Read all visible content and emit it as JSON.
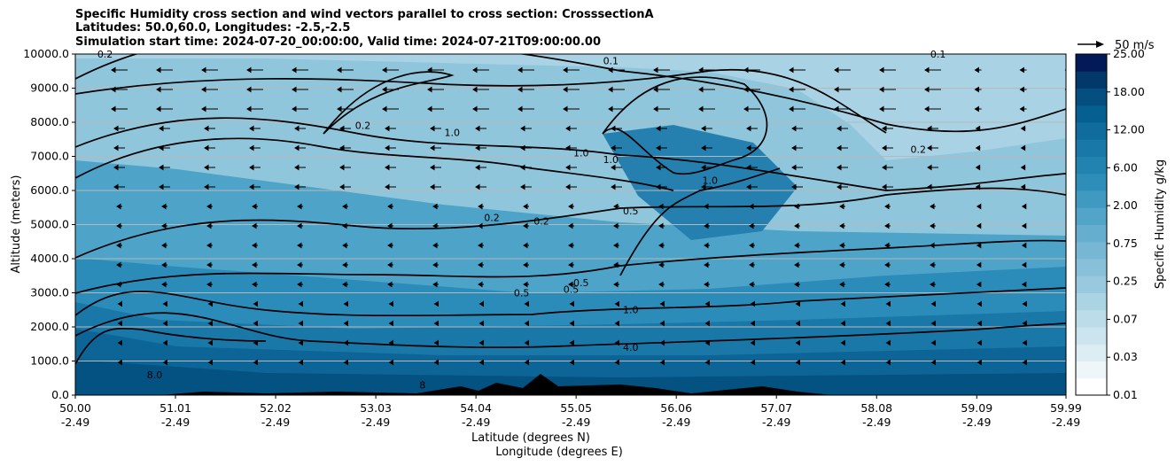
{
  "chart_data": {
    "type": "heatmap",
    "title_lines": [
      "Specific Humidity cross section and wind vectors parallel to cross section: CrosssectionA",
      "Latitudes: 50.0,60.0, Longitudes: -2.5,-2.5",
      "Simulation start time: 2024-07-20_00:00:00, Valid time: 2024-07-21T09:00:00.00"
    ],
    "ylabel": "Altitude (meters)",
    "xlabel_lines": [
      "Latitude (degrees N)",
      "Longitude (degrees E)"
    ],
    "ylim": [
      0,
      10000
    ],
    "yticks": [
      "0.0",
      "1000.0",
      "2000.0",
      "3000.0",
      "4000.0",
      "5000.0",
      "6000.0",
      "7000.0",
      "8000.0",
      "9000.0",
      "10000.0"
    ],
    "xticks": [
      {
        "lat": "50.00",
        "lon": "-2.49"
      },
      {
        "lat": "51.01",
        "lon": "-2.49"
      },
      {
        "lat": "52.02",
        "lon": "-2.49"
      },
      {
        "lat": "53.03",
        "lon": "-2.49"
      },
      {
        "lat": "54.04",
        "lon": "-2.49"
      },
      {
        "lat": "55.05",
        "lon": "-2.49"
      },
      {
        "lat": "56.06",
        "lon": "-2.49"
      },
      {
        "lat": "57.07",
        "lon": "-2.49"
      },
      {
        "lat": "58.08",
        "lon": "-2.49"
      },
      {
        "lat": "59.09",
        "lon": "-2.49"
      },
      {
        "lat": "59.99",
        "lon": "-2.49"
      }
    ],
    "grid": "horizontal",
    "colorbar": {
      "label": "Specific Humidity g/kg",
      "ticks": [
        "0.01",
        "0.03",
        "0.07",
        "0.25",
        "0.75",
        "2.00",
        "6.00",
        "12.00",
        "18.00",
        "25.00"
      ],
      "levels": 20
    },
    "quiver_key": "50 m/s",
    "contour_labels": [
      {
        "text": "0.1",
        "lat": 55.4,
        "alt": 9700
      },
      {
        "text": "0.1",
        "lat": 58.7,
        "alt": 9900
      },
      {
        "text": "0.2",
        "lat": 50.3,
        "alt": 9900
      },
      {
        "text": "0.2",
        "lat": 52.9,
        "alt": 7800
      },
      {
        "text": "1.0",
        "lat": 53.8,
        "alt": 7600
      },
      {
        "text": "0.2",
        "lat": 58.5,
        "alt": 7100
      },
      {
        "text": "1.0",
        "lat": 55.1,
        "alt": 7000
      },
      {
        "text": "1.0",
        "lat": 55.4,
        "alt": 6800
      },
      {
        "text": "1.0",
        "lat": 56.4,
        "alt": 6200
      },
      {
        "text": "0.5",
        "lat": 55.6,
        "alt": 5300
      },
      {
        "text": "0.2",
        "lat": 54.2,
        "alt": 5100
      },
      {
        "text": "0.2",
        "lat": 54.7,
        "alt": 5000
      },
      {
        "text": "0.5",
        "lat": 54.5,
        "alt": 2900
      },
      {
        "text": "0.5",
        "lat": 55.0,
        "alt": 3000
      },
      {
        "text": "0.5",
        "lat": 55.1,
        "alt": 3200
      },
      {
        "text": "1.0",
        "lat": 55.6,
        "alt": 2400
      },
      {
        "text": "4.0",
        "lat": 55.6,
        "alt": 1300
      },
      {
        "text": "8.0",
        "lat": 50.8,
        "alt": 500
      },
      {
        "text": "8",
        "lat": 53.5,
        "alt": 200
      }
    ]
  }
}
